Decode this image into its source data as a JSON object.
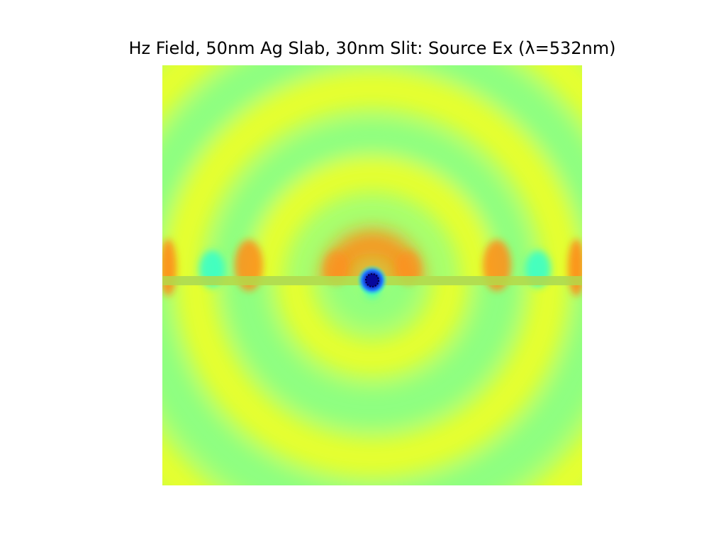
{
  "figure": {
    "title": "Hz Field, 50nm Ag Slab, 30nm Slit: Source Ex (λ=532nm)"
  },
  "chart_data": {
    "type": "heatmap",
    "title": "Hz Field, 50nm Ag Slab, 30nm Slit: Source Ex (λ=532nm)",
    "xlabel": "",
    "ylabel": "",
    "axes_visible": false,
    "colorbar": false,
    "colormap": "jet",
    "rendering": "field pattern (no numeric values labelled)",
    "colors": {
      "background_green": "#a6ff70",
      "ring_yellow": "#e6ff2e",
      "ring_green": "#8cff82",
      "peak_orange": "#ff8c1a",
      "trough_cyan": "#33ffcc",
      "slab_band": "#b4d84a",
      "source_center": "#08089c"
    },
    "features": [
      "50nm Ag slab (horizontal band)",
      "30nm slit at center",
      "Ex source at slit",
      "semicircular wavefronts above and below slab",
      "surface plasmon standing-wave lobes along slab"
    ]
  }
}
